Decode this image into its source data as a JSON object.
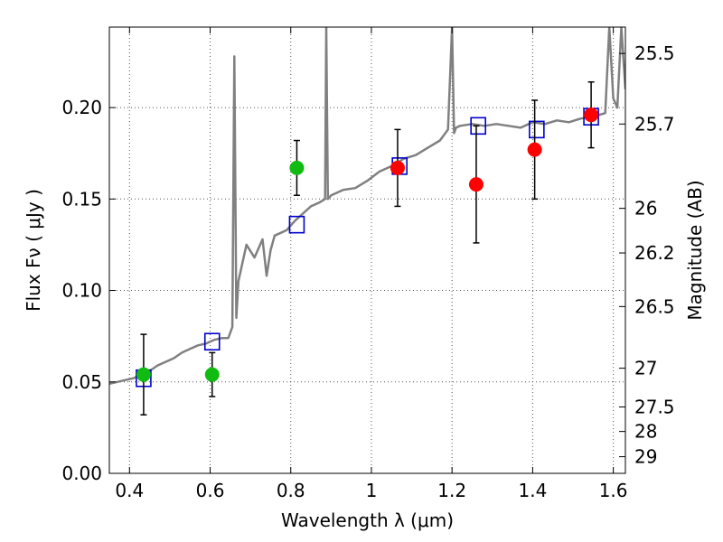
{
  "chart_data": {
    "type": "scatter",
    "title": "",
    "xlabel": "Wavelength  λ (μm)",
    "ylabel": "Flux  Fν  ( μJy )",
    "y2label": "Magnitude (AB)",
    "xlim": [
      0.35,
      1.63
    ],
    "ylim": [
      0.0,
      0.244
    ],
    "grid": true,
    "x_ticks": [
      0.4,
      0.6,
      0.8,
      1.0,
      1.2,
      1.4,
      1.6
    ],
    "x_tick_labels": [
      "0.4",
      "0.6",
      "0.8",
      "1",
      "1.2",
      "1.4",
      "1.6"
    ],
    "y_ticks": [
      0.0,
      0.05,
      0.1,
      0.15,
      0.2
    ],
    "y_tick_labels": [
      "0.00",
      "0.05",
      "0.10",
      "0.15",
      "0.20"
    ],
    "mag_ticks": [
      {
        "label": "25.5",
        "flux": 0.2296
      },
      {
        "label": "25.7",
        "flux": 0.191
      },
      {
        "label": "26",
        "flux": 0.1449
      },
      {
        "label": "26.2",
        "flux": 0.1205
      },
      {
        "label": "26.5",
        "flux": 0.0912
      },
      {
        "label": "27",
        "flux": 0.0575
      },
      {
        "label": "27.5",
        "flux": 0.0363
      },
      {
        "label": "28",
        "flux": 0.0229
      },
      {
        "label": "29",
        "flux": 0.0091
      }
    ],
    "colors": {
      "model": "#808080",
      "model_photometry": "#0000cc",
      "observed_green": "#11bb11",
      "observed_red": "#ff0000",
      "errorbar": "#000000",
      "grid": "#555555"
    },
    "series": [
      {
        "kind": "line",
        "x": [
          0.35,
          0.37,
          0.39,
          0.41,
          0.43,
          0.45,
          0.47,
          0.49,
          0.51,
          0.53,
          0.55,
          0.57,
          0.59,
          0.61,
          0.63,
          0.645,
          0.655,
          0.66,
          0.665,
          0.67,
          0.69,
          0.71,
          0.73,
          0.74,
          0.75,
          0.76,
          0.77,
          0.79,
          0.81,
          0.83,
          0.85,
          0.87,
          0.885,
          0.888,
          0.892,
          0.9,
          0.93,
          0.96,
          0.99,
          1.02,
          1.05,
          1.08,
          1.11,
          1.14,
          1.17,
          1.19,
          1.2,
          1.205,
          1.21,
          1.22,
          1.25,
          1.28,
          1.31,
          1.34,
          1.37,
          1.4,
          1.43,
          1.46,
          1.49,
          1.52,
          1.55,
          1.58,
          1.59,
          1.6,
          1.61,
          1.62,
          1.63
        ],
        "y": [
          0.049,
          0.05,
          0.051,
          0.052,
          0.054,
          0.056,
          0.059,
          0.061,
          0.063,
          0.066,
          0.068,
          0.07,
          0.071,
          0.073,
          0.074,
          0.074,
          0.08,
          0.228,
          0.085,
          0.105,
          0.125,
          0.118,
          0.128,
          0.108,
          0.122,
          0.13,
          0.131,
          0.133,
          0.138,
          0.142,
          0.146,
          0.148,
          0.15,
          0.244,
          0.15,
          0.152,
          0.155,
          0.156,
          0.16,
          0.165,
          0.168,
          0.172,
          0.174,
          0.178,
          0.182,
          0.188,
          0.244,
          0.186,
          0.189,
          0.19,
          0.191,
          0.19,
          0.191,
          0.19,
          0.189,
          0.192,
          0.191,
          0.193,
          0.192,
          0.194,
          0.195,
          0.197,
          0.244,
          0.205,
          0.2,
          0.244,
          0.21
        ]
      },
      {
        "kind": "markers",
        "marker": "square",
        "x": [
          0.435,
          0.605,
          0.815,
          1.07,
          1.265,
          1.41,
          1.545
        ],
        "y": [
          0.052,
          0.072,
          0.136,
          0.168,
          0.19,
          0.188,
          0.195
        ]
      },
      {
        "kind": "markers",
        "marker": "circle",
        "color_key": "observed_green",
        "x": [
          0.435,
          0.605,
          0.815
        ],
        "y": [
          0.054,
          0.054,
          0.167
        ],
        "err": [
          0.022,
          0.012,
          0.015
        ]
      },
      {
        "kind": "markers",
        "marker": "circle",
        "color_key": "observed_red",
        "x": [
          1.065,
          1.26,
          1.405,
          1.545
        ],
        "y": [
          0.167,
          0.158,
          0.177,
          0.196
        ],
        "err": [
          0.021,
          0.032,
          0.027,
          0.018
        ]
      }
    ]
  }
}
